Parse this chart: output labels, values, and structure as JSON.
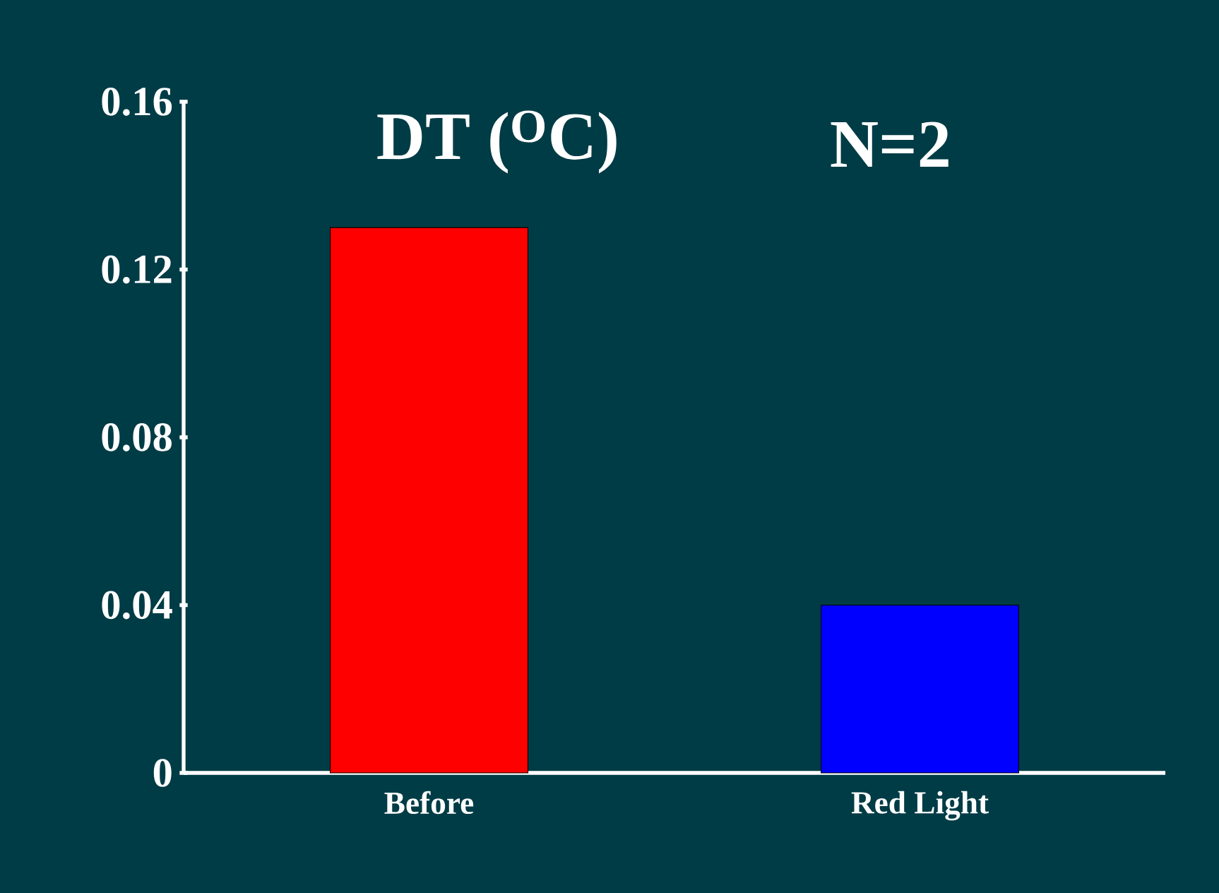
{
  "chart_data": {
    "type": "bar",
    "title": "DT ($^{O}$C)",
    "annotations": [
      "N=2"
    ],
    "categories": [
      "Before",
      "Red Light"
    ],
    "values": [
      0.13,
      0.04
    ],
    "colors": [
      "#ff0000",
      "#0000ff"
    ],
    "ylim": [
      0,
      0.16
    ],
    "yticks": [
      0,
      0.04,
      0.08,
      0.12,
      0.16
    ],
    "grid": false
  }
}
